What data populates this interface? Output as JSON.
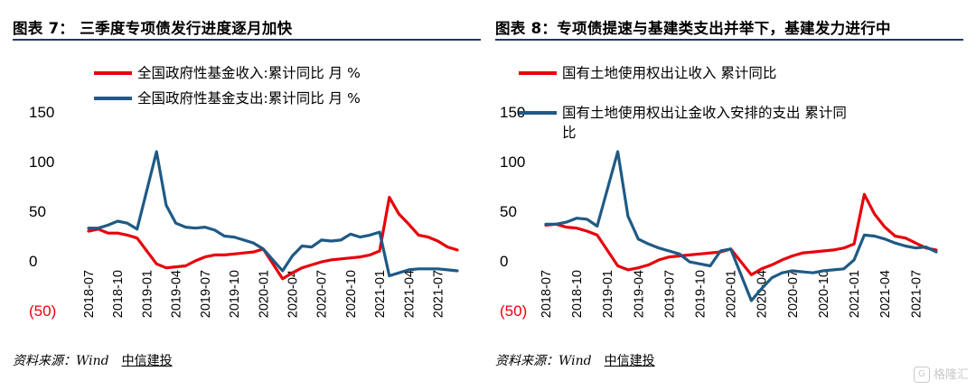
{
  "figures": [
    {
      "title": "图表 7：  三季度专项债发行进度逐月加快",
      "source": "资料来源：Wind",
      "brand": "中信建投"
    },
    {
      "title": "图表 8：专项债提速与基建类支出并举下，基建发力进行中",
      "source": "资料来源：Wind",
      "brand": "中信建投"
    }
  ],
  "watermark": {
    "logo": "G",
    "text": "格隆汇"
  },
  "chart_data": [
    {
      "type": "line",
      "title": "",
      "xlabel": "",
      "ylabel": "",
      "ylim": [
        -50,
        150
      ],
      "yticks": [
        150,
        100,
        50,
        0,
        -50
      ],
      "ytick_labels": [
        "150",
        "100",
        "50",
        "0",
        "(50)"
      ],
      "x": [
        "2018-07",
        "2018-08",
        "2018-09",
        "2018-10",
        "2018-11",
        "2018-12",
        "2019-01",
        "2019-02",
        "2019-03",
        "2019-04",
        "2019-05",
        "2019-06",
        "2019-07",
        "2019-08",
        "2019-09",
        "2019-10",
        "2019-11",
        "2019-12",
        "2020-01",
        "2020-02",
        "2020-03",
        "2020-04",
        "2020-05",
        "2020-06",
        "2020-07",
        "2020-08",
        "2020-09",
        "2020-10",
        "2020-11",
        "2020-12",
        "2021-01",
        "2021-02",
        "2021-03",
        "2021-04",
        "2021-05",
        "2021-06",
        "2021-07",
        "2021-08",
        "2021-09"
      ],
      "xtick_labels": [
        "2018-07",
        "2018-10",
        "2019-01",
        "2019-04",
        "2019-07",
        "2019-10",
        "2020-01",
        "2020-04",
        "2020-07",
        "2020-10",
        "2021-01",
        "2021-04",
        "2021-07"
      ],
      "legend_position": "top",
      "series": [
        {
          "name": "全国政府性基金收入:累计同比  月  %",
          "color": "#e8000b",
          "values": [
            30,
            32,
            28,
            28,
            26,
            23,
            null,
            -3,
            -7,
            -6,
            -5,
            0,
            4,
            6,
            6,
            7,
            8,
            9,
            12,
            null,
            -18,
            -12,
            -7,
            -4,
            -1,
            1,
            2,
            3,
            4,
            6,
            10,
            64,
            47,
            37,
            26,
            24,
            20,
            14,
            11
          ]
        },
        {
          "name": "全国政府性基金支出:累计同比  月  %",
          "color": "#1f5a85",
          "values": [
            33,
            33,
            36,
            40,
            38,
            32,
            null,
            110,
            56,
            38,
            34,
            33,
            34,
            31,
            25,
            24,
            21,
            18,
            12,
            null,
            -10,
            5,
            15,
            14,
            21,
            20,
            21,
            27,
            24,
            26,
            29,
            -15,
            -12,
            -9,
            -8,
            -8,
            -8,
            -9,
            -10
          ]
        }
      ]
    },
    {
      "type": "line",
      "title": "",
      "xlabel": "",
      "ylabel": "",
      "ylim": [
        -50,
        150
      ],
      "yticks": [
        150,
        100,
        50,
        0,
        -50
      ],
      "ytick_labels": [
        "150",
        "100",
        "50",
        "0",
        "(50)"
      ],
      "x": [
        "2018-07",
        "2018-08",
        "2018-09",
        "2018-10",
        "2018-11",
        "2018-12",
        "2019-01",
        "2019-02",
        "2019-03",
        "2019-04",
        "2019-05",
        "2019-06",
        "2019-07",
        "2019-08",
        "2019-09",
        "2019-10",
        "2019-11",
        "2019-12",
        "2020-01",
        "2020-02",
        "2020-03",
        "2020-04",
        "2020-05",
        "2020-06",
        "2020-07",
        "2020-08",
        "2020-09",
        "2020-10",
        "2020-11",
        "2020-12",
        "2021-01",
        "2021-02",
        "2021-03",
        "2021-04",
        "2021-05",
        "2021-06",
        "2021-07",
        "2021-08",
        "2021-09"
      ],
      "xtick_labels": [
        "2018-07",
        "2018-10",
        "2019-01",
        "2019-04",
        "2019-07",
        "2019-10",
        "2020-01",
        "2020-04",
        "2020-07",
        "2020-10",
        "2021-01",
        "2021-04",
        "2021-07"
      ],
      "legend_position": "top",
      "series": [
        {
          "name": "国有土地使用权出让收入  累计同比",
          "color": "#e8000b",
          "values": [
            36,
            37,
            34,
            33,
            30,
            26,
            null,
            -5,
            -9,
            -7,
            -4,
            1,
            4,
            5,
            6,
            7,
            8,
            9,
            12,
            null,
            -14,
            -8,
            -4,
            1,
            5,
            8,
            9,
            10,
            11,
            13,
            17,
            67,
            47,
            34,
            25,
            23,
            18,
            13,
            11
          ]
        },
        {
          "name": "国有土地使用权出让金收入安排的支出  累计同比",
          "color": "#1f5a85",
          "values": [
            37,
            37,
            39,
            43,
            42,
            35,
            null,
            110,
            45,
            22,
            17,
            13,
            10,
            7,
            -1,
            -3,
            -5,
            10,
            12,
            null,
            -40,
            -28,
            -17,
            -12,
            -10,
            -11,
            -12,
            -10,
            -9,
            -8,
            1,
            26,
            25,
            22,
            18,
            15,
            13,
            14,
            9
          ]
        }
      ]
    }
  ]
}
